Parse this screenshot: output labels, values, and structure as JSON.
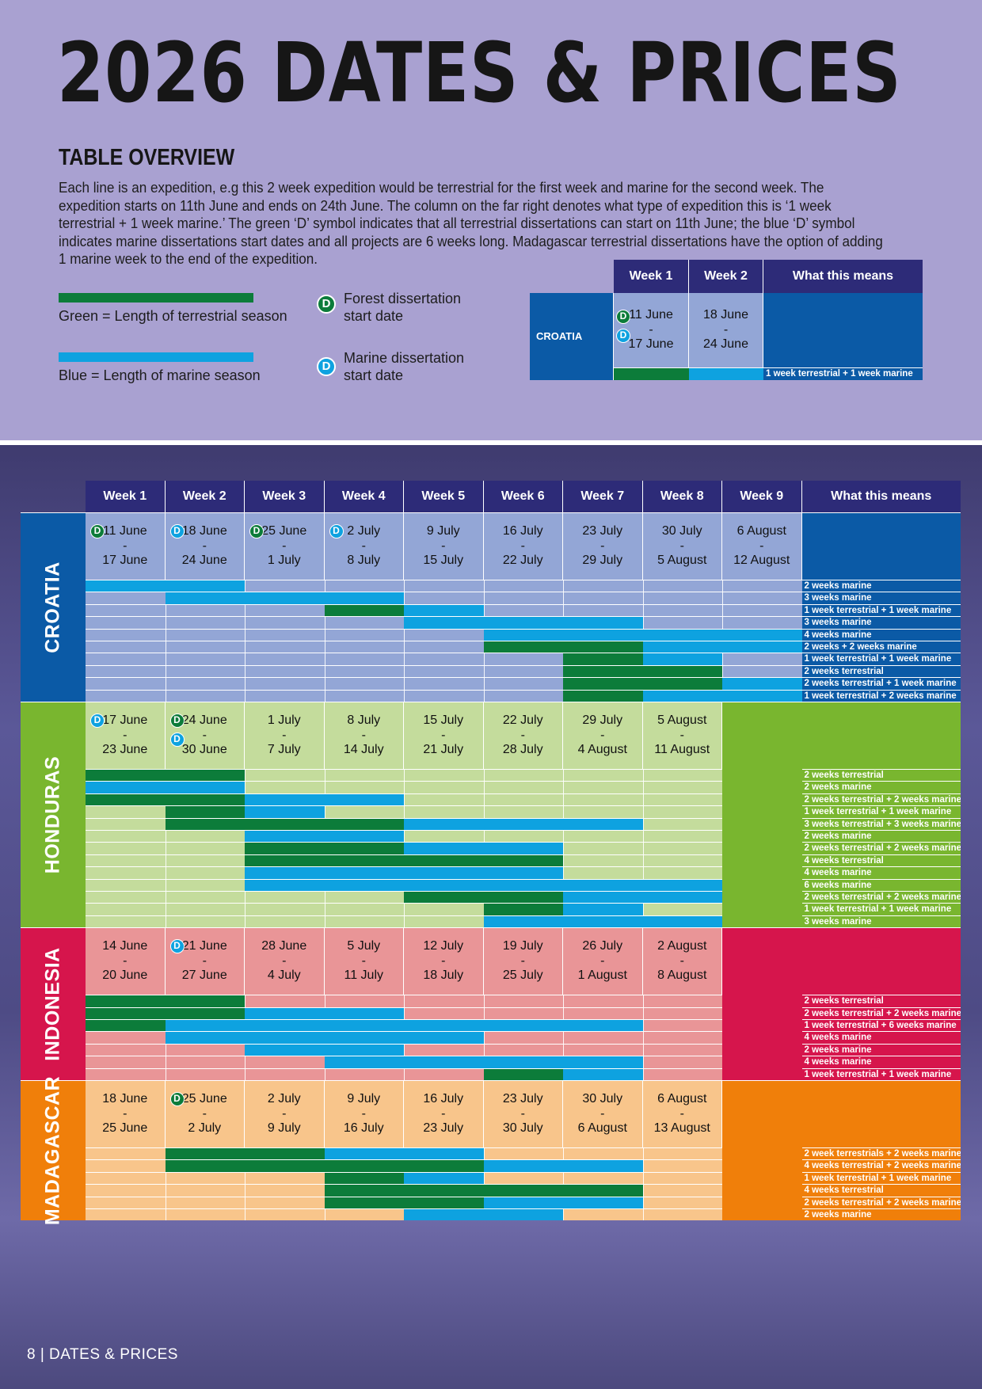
{
  "title": "2026 DATES & PRICES",
  "overview": {
    "heading": "TABLE OVERVIEW",
    "text": "Each line is an expedition, e.g this 2 week expedition would be terrestrial for the first week and marine for the second week. The expedition starts on 11th June and ends on 24th June. The column on the far right denotes what type of expedition this is ‘1 week terrestrial + 1 week marine.’ The green ‘D’ symbol indicates that all terrestrial dissertations can start on 11th June; the blue ‘D’ symbol indicates marine dissertations start dates and all projects are 6 weeks long. Madagascar terrestrial dissertations have the option of adding 1 marine week to the end of the expedition."
  },
  "legend": {
    "green_label": "Green = Length of terrestrial season",
    "blue_label": "Blue = Length of marine season",
    "forest_label_1": "Forest dissertation",
    "forest_label_2": "start date",
    "marine_label_1": "Marine dissertation",
    "marine_label_2": "start date",
    "d_symbol": "D"
  },
  "colors": {
    "terrestrial": "#0c7c3a",
    "marine": "#0ea2e0",
    "header": "#2d2b78",
    "top_bg": "#a9a1d1"
  },
  "example": {
    "headers": [
      "Week 1",
      "Week 2",
      "What this means"
    ],
    "country": "CROATIA",
    "week1": {
      "start": "11 June",
      "sep": "-",
      "end": "17 June"
    },
    "week2": {
      "start": "18 June",
      "sep": "-",
      "end": "24 June"
    },
    "meaning": "1 week terrestrial + 1 week marine"
  },
  "schedule": {
    "headers": [
      "Week 1",
      "Week 2",
      "Week 3",
      "Week 4",
      "Week 5",
      "Week 6",
      "Week 7",
      "Week 8",
      "Week 9",
      "What this means"
    ],
    "countries": [
      {
        "name": "CROATIA",
        "colors": {
          "label": "#0b5aa6",
          "light": "#93a6d6",
          "meaning": "#0b5aa6"
        },
        "weeks": [
          {
            "s": "11 June",
            "e": "17 June",
            "d": "g"
          },
          {
            "s": "18 June",
            "e": "24 June",
            "d": "b"
          },
          {
            "s": "25 June",
            "e": "1 July",
            "d": "g"
          },
          {
            "s": "2 July",
            "e": "8 July",
            "d": "b"
          },
          {
            "s": "9 July",
            "e": "15 July"
          },
          {
            "s": "16 July",
            "e": "22 July"
          },
          {
            "s": "23 July",
            "e": "29 July"
          },
          {
            "s": "30 July",
            "e": "5 August"
          },
          {
            "s": "6 August",
            "e": "12 August"
          }
        ],
        "expeditions": [
          {
            "label": "2 weeks marine",
            "segs": [
              [
                "m",
                0,
                2
              ]
            ]
          },
          {
            "label": "3 weeks marine",
            "segs": [
              [
                "m",
                1,
                3
              ]
            ]
          },
          {
            "label": "1 week terrestrial + 1 week marine",
            "segs": [
              [
                "t",
                3,
                1
              ],
              [
                "m",
                4,
                1
              ]
            ]
          },
          {
            "label": "3 weeks marine",
            "segs": [
              [
                "m",
                4,
                3
              ]
            ]
          },
          {
            "label": "4 weeks marine",
            "segs": [
              [
                "m",
                5,
                4
              ]
            ]
          },
          {
            "label": "2 weeks + 2 weeks marine",
            "segs": [
              [
                "t",
                5,
                2
              ],
              [
                "m",
                7,
                2
              ]
            ]
          },
          {
            "label": "1 week terrestrial + 1 week marine",
            "segs": [
              [
                "t",
                6,
                1
              ],
              [
                "m",
                7,
                1
              ]
            ]
          },
          {
            "label": "2 weeks terrestrial",
            "segs": [
              [
                "t",
                6,
                2
              ]
            ]
          },
          {
            "label": "2 weeks terrestrial + 1 week marine",
            "segs": [
              [
                "t",
                6,
                2
              ],
              [
                "m",
                8,
                1
              ]
            ]
          },
          {
            "label": "1 week terrestrial + 2 weeks marine",
            "segs": [
              [
                "t",
                6,
                1
              ],
              [
                "m",
                7,
                2
              ]
            ]
          }
        ]
      },
      {
        "name": "HONDURAS",
        "colors": {
          "label": "#79b62f",
          "light": "#c4dc9c",
          "meaning": "#79b62f"
        },
        "weeks": [
          {
            "s": "17 June",
            "e": "23 June",
            "d": "b"
          },
          {
            "s": "24 June",
            "e": "30 June",
            "d": "gb"
          },
          {
            "s": "1 July",
            "e": "7 July"
          },
          {
            "s": "8 July",
            "e": "14 July"
          },
          {
            "s": "15 July",
            "e": "21 July"
          },
          {
            "s": "22 July",
            "e": "28 July"
          },
          {
            "s": "29 July",
            "e": "4 August"
          },
          {
            "s": "5 August",
            "e": "11 August"
          }
        ],
        "expeditions": [
          {
            "label": "2 weeks terrestrial",
            "segs": [
              [
                "t",
                0,
                2
              ]
            ]
          },
          {
            "label": "2 weeks marine",
            "segs": [
              [
                "m",
                0,
                2
              ]
            ]
          },
          {
            "label": "2 weeks terrestrial + 2 weeks marine",
            "segs": [
              [
                "t",
                0,
                2
              ],
              [
                "m",
                2,
                2
              ]
            ]
          },
          {
            "label": "1 week terrestrial + 1 week marine",
            "segs": [
              [
                "t",
                1,
                1
              ],
              [
                "m",
                2,
                1
              ]
            ]
          },
          {
            "label": "3 weeks terrestrial + 3 weeks marine",
            "segs": [
              [
                "t",
                1,
                3
              ],
              [
                "m",
                4,
                3
              ]
            ]
          },
          {
            "label": "2 weeks marine",
            "segs": [
              [
                "m",
                2,
                2
              ]
            ]
          },
          {
            "label": "2 weeks terrestrial + 2 weeks marine",
            "segs": [
              [
                "t",
                2,
                2
              ],
              [
                "m",
                4,
                2
              ]
            ]
          },
          {
            "label": "4 weeks terrestrial",
            "segs": [
              [
                "t",
                2,
                4
              ]
            ]
          },
          {
            "label": "4 weeks marine",
            "segs": [
              [
                "m",
                2,
                4
              ]
            ]
          },
          {
            "label": "6 weeks marine",
            "segs": [
              [
                "m",
                2,
                6
              ]
            ]
          },
          {
            "label": "2 weeks terrestrial + 2 weeks marine",
            "segs": [
              [
                "t",
                4,
                2
              ],
              [
                "m",
                6,
                2
              ]
            ]
          },
          {
            "label": "1 week terrestrial + 1 week marine",
            "segs": [
              [
                "t",
                5,
                1
              ],
              [
                "m",
                6,
                1
              ]
            ]
          },
          {
            "label": "3 weeks marine",
            "segs": [
              [
                "m",
                5,
                3
              ]
            ]
          }
        ]
      },
      {
        "name": "INDONESIA",
        "colors": {
          "label": "#d6154c",
          "light": "#e99597",
          "meaning": "#d6154c"
        },
        "weeks": [
          {
            "s": "14 June",
            "e": "20 June"
          },
          {
            "s": "21 June",
            "e": "27 June",
            "d": "b"
          },
          {
            "s": "28 June",
            "e": "4 July"
          },
          {
            "s": "5 July",
            "e": "11 July"
          },
          {
            "s": "12 July",
            "e": "18 July"
          },
          {
            "s": "19 July",
            "e": "25 July"
          },
          {
            "s": "26 July",
            "e": "1 August"
          },
          {
            "s": "2 August",
            "e": "8 August"
          }
        ],
        "expeditions": [
          {
            "label": "2 weeks terrestrial",
            "segs": [
              [
                "t",
                0,
                2
              ]
            ]
          },
          {
            "label": "2 weeks terrestrial + 2 weeks marine",
            "segs": [
              [
                "t",
                0,
                2
              ],
              [
                "m",
                2,
                2
              ]
            ]
          },
          {
            "label": "1 week terrestrial + 6 weeks marine",
            "segs": [
              [
                "t",
                0,
                1
              ],
              [
                "m",
                1,
                6
              ]
            ]
          },
          {
            "label": "4 weeks marine",
            "segs": [
              [
                "m",
                1,
                4
              ]
            ]
          },
          {
            "label": "2 weeks marine",
            "segs": [
              [
                "m",
                2,
                2
              ]
            ]
          },
          {
            "label": "4 weeks marine",
            "segs": [
              [
                "m",
                3,
                4
              ]
            ]
          },
          {
            "label": "1 week terrestrial + 1 week marine",
            "segs": [
              [
                "t",
                5,
                1
              ],
              [
                "m",
                6,
                1
              ]
            ]
          }
        ]
      },
      {
        "name": "MADAGASCAR",
        "colors": {
          "label": "#f07f0a",
          "light": "#f8c58b",
          "meaning": "#f07f0a"
        },
        "weeks": [
          {
            "s": "18 June",
            "e": "25 June"
          },
          {
            "s": "25 June",
            "e": "2 July",
            "d": "g"
          },
          {
            "s": "2 July",
            "e": "9 July"
          },
          {
            "s": "9 July",
            "e": "16 July"
          },
          {
            "s": "16 July",
            "e": "23 July"
          },
          {
            "s": "23 July",
            "e": "30 July"
          },
          {
            "s": "30 July",
            "e": "6 August"
          },
          {
            "s": "6 August",
            "e": "13 August"
          }
        ],
        "expeditions": [
          {
            "label": "2 week terrestrials + 2 weeks marine",
            "segs": [
              [
                "t",
                1,
                2
              ],
              [
                "m",
                3,
                2
              ]
            ]
          },
          {
            "label": "4 weeks terrestrial + 2 weeks marine",
            "segs": [
              [
                "t",
                1,
                4
              ],
              [
                "m",
                5,
                2
              ]
            ]
          },
          {
            "label": "1 week terrestrial + 1 week marine",
            "segs": [
              [
                "t",
                3,
                1
              ],
              [
                "m",
                4,
                1
              ]
            ]
          },
          {
            "label": "4 weeks terrestrial",
            "segs": [
              [
                "t",
                3,
                4
              ]
            ]
          },
          {
            "label": "2 weeks terrestrial + 2 weeks marine",
            "segs": [
              [
                "t",
                3,
                2
              ],
              [
                "m",
                5,
                2
              ]
            ]
          },
          {
            "label": "2 weeks marine",
            "segs": [
              [
                "m",
                4,
                2
              ]
            ]
          }
        ]
      }
    ]
  },
  "footer": "8  |  DATES & PRICES"
}
